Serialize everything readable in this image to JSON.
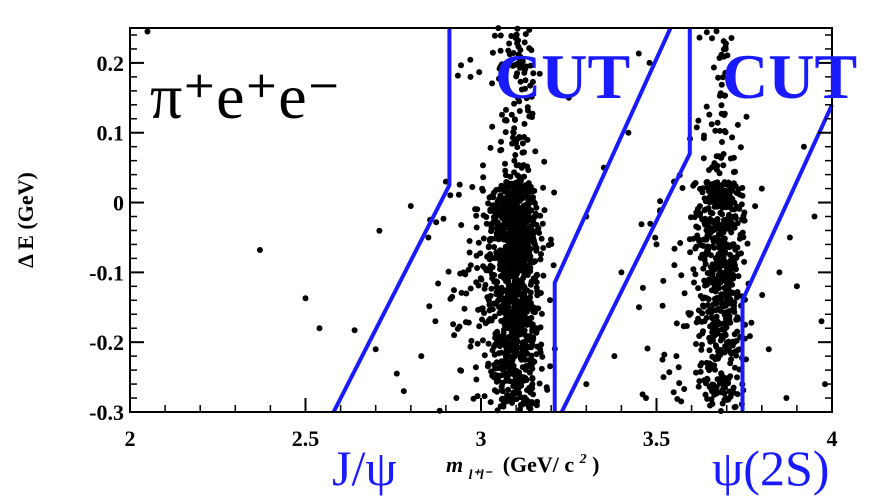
{
  "chart_data": {
    "type": "scatter",
    "xlabel": "m",
    "xlabel_sub": "l⁺l⁻",
    "xlabel_units": "(GeV/ c",
    "xlabel_units_sup": "2",
    "xlabel_units_close": ")",
    "ylabel": "Δ E (GeV)",
    "xlim": [
      2.0,
      4.0
    ],
    "ylim": [
      -0.3,
      0.25
    ],
    "xticks": [
      "2",
      "2.5",
      "3",
      "3.5",
      "4"
    ],
    "yticks": [
      "0.2",
      "0.1",
      "0",
      "-0.1",
      "-0.2",
      "-0.3"
    ],
    "channel_label": "π⁺e⁺e⁻",
    "annotations": {
      "cut_left": "CUT",
      "cut_right": "CUT",
      "jpsi": "J/ψ",
      "psi2s": "ψ(2S)"
    },
    "cut_boundaries": [
      {
        "name": "jpsi-cut-left",
        "points": [
          [
            2.58,
            -0.3
          ],
          [
            2.91,
            0.025
          ],
          [
            2.91,
            0.25
          ]
        ]
      },
      {
        "name": "jpsi-cut-right",
        "points": [
          [
            3.21,
            -0.3
          ],
          [
            3.21,
            -0.115
          ],
          [
            3.54,
            0.25
          ]
        ]
      },
      {
        "name": "psi2s-cut-left",
        "points": [
          [
            3.23,
            -0.3
          ],
          [
            3.595,
            0.07
          ],
          [
            3.595,
            0.25
          ]
        ]
      },
      {
        "name": "psi2s-cut-right",
        "points": [
          [
            3.745,
            -0.3
          ],
          [
            3.745,
            -0.14
          ],
          [
            4.0,
            0.14
          ]
        ]
      }
    ],
    "clusters": [
      {
        "name": "jpsi-peak",
        "center_x": 3.1,
        "sigma_x": 0.028,
        "n": 1300
      },
      {
        "name": "psi2s-peak",
        "center_x": 3.686,
        "sigma_x": 0.026,
        "n": 700
      }
    ],
    "outlier_points": [
      [
        2.05,
        0.245
      ],
      [
        2.37,
        -0.068
      ],
      [
        2.5,
        -0.137
      ],
      [
        2.54,
        -0.18
      ],
      [
        2.64,
        -0.183
      ],
      [
        2.7,
        -0.21
      ],
      [
        2.76,
        -0.245
      ],
      [
        2.8,
        -0.005
      ],
      [
        2.78,
        -0.27
      ],
      [
        2.87,
        -0.17
      ],
      [
        2.9,
        0.03
      ],
      [
        2.85,
        -0.05
      ],
      [
        2.83,
        -0.22
      ],
      [
        2.93,
        -0.28
      ],
      [
        2.95,
        -0.1
      ],
      [
        3.3,
        -0.02
      ],
      [
        3.35,
        0.05
      ],
      [
        3.38,
        -0.22
      ],
      [
        3.42,
        0.1
      ],
      [
        3.45,
        -0.15
      ],
      [
        3.48,
        0.2
      ],
      [
        3.5,
        -0.06
      ],
      [
        3.52,
        -0.25
      ],
      [
        3.55,
        0.03
      ],
      [
        3.3,
        -0.26
      ],
      [
        3.82,
        -0.21
      ],
      [
        3.85,
        -0.1
      ],
      [
        3.88,
        -0.05
      ],
      [
        3.9,
        -0.12
      ],
      [
        3.95,
        -0.02
      ],
      [
        3.97,
        -0.17
      ],
      [
        3.98,
        -0.26
      ],
      [
        3.8,
        0.02
      ],
      [
        3.92,
        0.08
      ],
      [
        3.87,
        -0.28
      ],
      [
        3.25,
        0.15
      ],
      [
        3.4,
        -0.1
      ],
      [
        3.47,
        -0.28
      ],
      [
        3.58,
        -0.13
      ],
      [
        2.97,
        0.18
      ]
    ],
    "colors": {
      "markers": "#000000",
      "cut_lines": "#1a1aff",
      "labels": "#1a1aff"
    },
    "grid": false
  }
}
